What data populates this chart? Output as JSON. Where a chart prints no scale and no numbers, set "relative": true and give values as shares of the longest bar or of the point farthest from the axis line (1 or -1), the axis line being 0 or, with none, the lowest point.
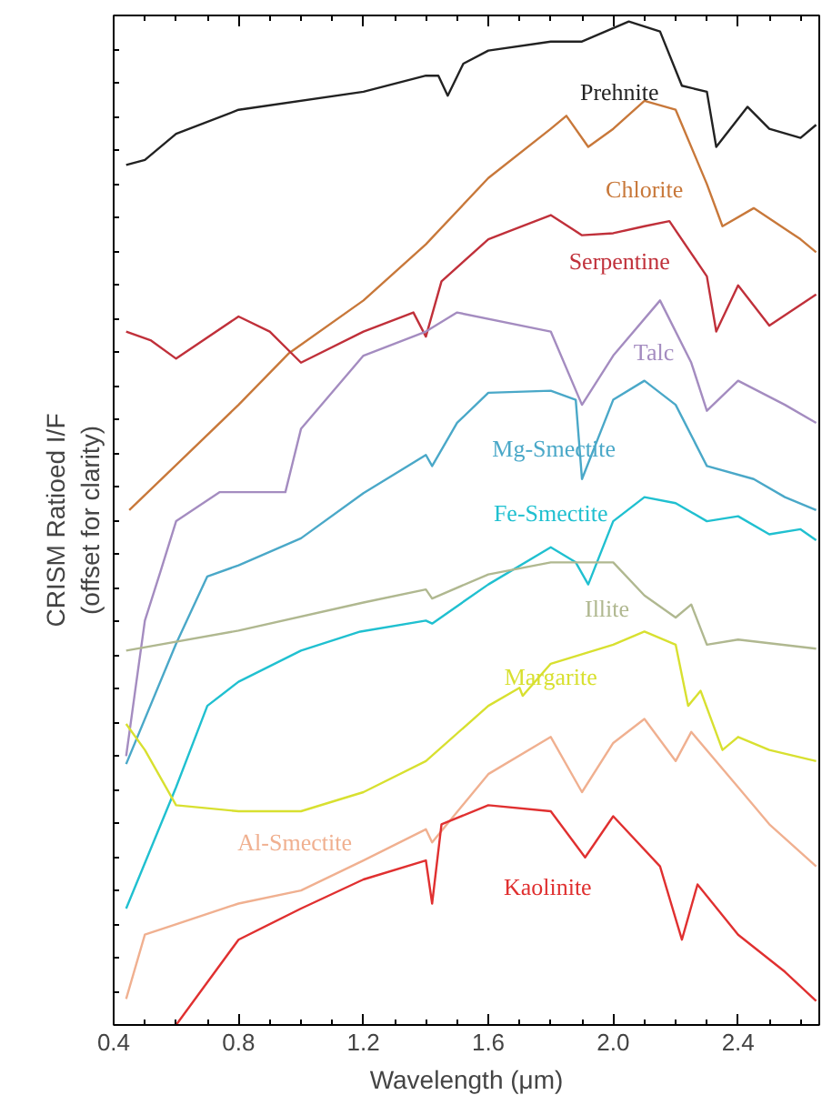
{
  "chart_data": {
    "type": "line",
    "relative": true,
    "xlabel": "Wavelength (μm)",
    "ylabel": "CRISM Ratioed I/F\n(offset for clarity)",
    "xlim": [
      0.4,
      2.66
    ],
    "xticks": [
      0.4,
      0.8,
      1.2,
      1.6,
      {
        "value": 2,
        "label": "2.0"
      },
      2.4
    ],
    "grid": false,
    "marker": "none",
    "line_style": "solid",
    "series": [
      {
        "name": "Prehnite",
        "color": "#222222",
        "x": [
          0.44,
          0.5,
          0.6,
          0.8,
          1.2,
          1.4,
          1.44,
          1.47,
          1.52,
          1.6,
          1.8,
          1.9,
          2.05,
          2.15,
          2.22,
          2.3,
          2.33,
          2.43,
          2.5,
          2.6,
          2.65
        ],
        "values": [
          0.857,
          0.862,
          0.888,
          0.912,
          0.93,
          0.946,
          0.946,
          0.926,
          0.958,
          0.971,
          0.98,
          0.98,
          1.0,
          0.99,
          0.936,
          0.93,
          0.875,
          0.915,
          0.893,
          0.884,
          0.897
        ]
      },
      {
        "name": "Chlorite",
        "color": "#c8783a",
        "x": [
          0.45,
          0.8,
          0.96,
          1.2,
          1.4,
          1.6,
          1.8,
          1.85,
          1.92,
          2.0,
          2.1,
          2.2,
          2.3,
          2.35,
          2.45,
          2.6,
          2.65
        ],
        "values": [
          0.513,
          0.618,
          0.669,
          0.722,
          0.778,
          0.844,
          0.893,
          0.906,
          0.875,
          0.893,
          0.921,
          0.912,
          0.838,
          0.796,
          0.814,
          0.783,
          0.77
        ]
      },
      {
        "name": "Serpentine",
        "color": "#c0303a",
        "x": [
          0.44,
          0.52,
          0.6,
          0.8,
          0.9,
          1.0,
          1.2,
          1.36,
          1.4,
          1.45,
          1.6,
          1.8,
          1.9,
          2.0,
          2.1,
          2.18,
          2.3,
          2.33,
          2.4,
          2.5,
          2.65
        ],
        "values": [
          0.691,
          0.682,
          0.664,
          0.706,
          0.691,
          0.66,
          0.691,
          0.71,
          0.686,
          0.741,
          0.783,
          0.807,
          0.787,
          0.789,
          0.796,
          0.801,
          0.746,
          0.691,
          0.737,
          0.697,
          0.728
        ]
      },
      {
        "name": "Talc",
        "color": "#a48cc0",
        "x": [
          0.44,
          0.5,
          0.55,
          0.6,
          0.74,
          0.95,
          1.0,
          1.2,
          1.4,
          1.5,
          1.8,
          1.9,
          2.0,
          2.15,
          2.25,
          2.3,
          2.4,
          2.55,
          2.65
        ],
        "values": [
          0.268,
          0.403,
          0.452,
          0.502,
          0.531,
          0.531,
          0.594,
          0.667,
          0.691,
          0.71,
          0.691,
          0.618,
          0.667,
          0.722,
          0.66,
          0.612,
          0.642,
          0.618,
          0.6
        ]
      },
      {
        "name": "Mg-Smectite",
        "color": "#4aa8c8",
        "x": [
          0.44,
          0.6,
          0.7,
          0.8,
          1.0,
          1.2,
          1.4,
          1.42,
          1.5,
          1.6,
          1.8,
          1.88,
          1.9,
          2.0,
          2.1,
          2.2,
          2.3,
          2.45,
          2.55,
          2.65
        ],
        "values": [
          0.26,
          0.38,
          0.447,
          0.458,
          0.485,
          0.53,
          0.568,
          0.557,
          0.6,
          0.63,
          0.632,
          0.623,
          0.544,
          0.623,
          0.642,
          0.618,
          0.557,
          0.544,
          0.526,
          0.513
        ]
      },
      {
        "name": "Fe-Smectite",
        "color": "#20c0d0",
        "x": [
          0.44,
          0.6,
          0.7,
          0.8,
          1.0,
          1.19,
          1.4,
          1.42,
          1.6,
          1.8,
          1.88,
          1.92,
          2.0,
          2.1,
          2.2,
          2.3,
          2.4,
          2.5,
          2.6,
          2.65
        ],
        "values": [
          0.116,
          0.237,
          0.318,
          0.342,
          0.373,
          0.392,
          0.403,
          0.4,
          0.439,
          0.476,
          0.461,
          0.439,
          0.502,
          0.526,
          0.52,
          0.502,
          0.507,
          0.489,
          0.494,
          0.483
        ]
      },
      {
        "name": "Illite",
        "color": "#b0b890",
        "x": [
          0.44,
          0.8,
          1.2,
          1.4,
          1.42,
          1.6,
          1.8,
          2.0,
          2.1,
          2.2,
          2.25,
          2.3,
          2.4,
          2.65
        ],
        "values": [
          0.373,
          0.393,
          0.421,
          0.434,
          0.425,
          0.449,
          0.461,
          0.461,
          0.428,
          0.406,
          0.419,
          0.379,
          0.384,
          0.375
        ]
      },
      {
        "name": "Margarite",
        "color": "#d8e030",
        "x": [
          0.44,
          0.5,
          0.6,
          0.8,
          1.0,
          1.2,
          1.4,
          1.6,
          1.7,
          1.71,
          1.8,
          2.0,
          2.1,
          2.2,
          2.24,
          2.28,
          2.35,
          2.4,
          2.5,
          2.65
        ],
        "values": [
          0.3,
          0.274,
          0.219,
          0.213,
          0.213,
          0.232,
          0.263,
          0.318,
          0.336,
          0.328,
          0.36,
          0.379,
          0.392,
          0.379,
          0.318,
          0.333,
          0.274,
          0.287,
          0.274,
          0.263
        ]
      },
      {
        "name": "Al-Smectite",
        "color": "#f0b090",
        "x": [
          0.44,
          0.5,
          0.8,
          1.0,
          1.2,
          1.4,
          1.42,
          1.6,
          1.8,
          1.9,
          2.0,
          2.1,
          2.2,
          2.25,
          2.4,
          2.5,
          2.65
        ],
        "values": [
          0.026,
          0.09,
          0.121,
          0.134,
          0.164,
          0.195,
          0.182,
          0.25,
          0.287,
          0.232,
          0.281,
          0.305,
          0.263,
          0.292,
          0.237,
          0.2,
          0.158
        ]
      },
      {
        "name": "Kaolinite",
        "color": "#e03030",
        "x": [
          0.6,
          0.8,
          1.0,
          1.2,
          1.4,
          1.42,
          1.45,
          1.6,
          1.8,
          1.91,
          2.0,
          2.15,
          2.22,
          2.27,
          2.4,
          2.55,
          2.65
        ],
        "values": [
          0.0,
          0.085,
          0.116,
          0.145,
          0.164,
          0.121,
          0.2,
          0.219,
          0.213,
          0.167,
          0.208,
          0.158,
          0.085,
          0.14,
          0.09,
          0.053,
          0.024
        ]
      }
    ]
  }
}
